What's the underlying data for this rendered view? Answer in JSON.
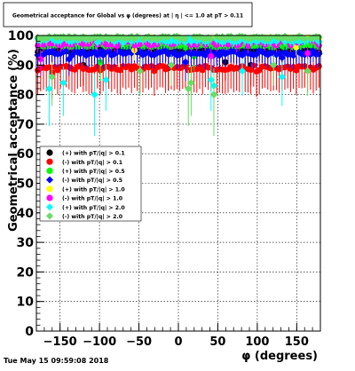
{
  "chart_data": {
    "type": "scatter",
    "title": "Geometrical acceptance for Global vs φ (degrees) at | η | <= 1.0 at pT > 0.11",
    "xlabel": "φ (degrees)",
    "ylabel": "Geometrical acceptance (%)",
    "xlim": [
      -180,
      180
    ],
    "ylim": [
      0,
      100
    ],
    "x_ticks": [
      -150,
      -100,
      -50,
      0,
      50,
      100,
      150
    ],
    "x_tick_labels": [
      "−150",
      "−100",
      "−50",
      "0",
      "50",
      "100",
      "150"
    ],
    "y_ticks": [
      0,
      10,
      20,
      30,
      40,
      50,
      60,
      70,
      80,
      90,
      100
    ],
    "y_tick_labels": [
      "0",
      "10",
      "20",
      "30",
      "40",
      "50",
      "60",
      "70",
      "80",
      "90",
      "100"
    ],
    "grid": true,
    "legend_position": "middle-left",
    "n_bins": 100,
    "series": [
      {
        "name": "(+) with pT/|q| > 0.1",
        "color": "#000000",
        "marker": "circle",
        "base": 95.0,
        "noise": 0.7,
        "dips": [
          [
            -120,
            90
          ],
          [
            -12,
            89
          ],
          [
            60,
            91
          ],
          [
            92,
            90
          ]
        ]
      },
      {
        "name": "(-) with pT/|q| > 0.1",
        "color": "#ff0000",
        "marker": "circle",
        "base": 89.0,
        "noise": 0.8,
        "dips": [
          [
            -160,
            87.5
          ],
          [
            -30,
            88
          ],
          [
            100,
            87.8
          ]
        ]
      },
      {
        "name": "(+) with pT/|q| > 0.5",
        "color": "#00ff00",
        "marker": "circle",
        "base": 96.5,
        "noise": 0.6,
        "dips": [
          [
            -100,
            91
          ],
          [
            20,
            93
          ]
        ]
      },
      {
        "name": "(-) with pT/|q| > 0.5",
        "color": "#0000ff",
        "marker": "diamond",
        "base": 94.0,
        "noise": 0.8,
        "dips": [
          [
            -140,
            92
          ],
          [
            10,
            91
          ],
          [
            130,
            92.5
          ]
        ]
      },
      {
        "name": "(+) with pT/|q| > 1.0",
        "color": "#ffff00",
        "marker": "circle",
        "base": 99.0,
        "noise": 0.4,
        "dips": [
          [
            -55,
            95
          ],
          [
            150,
            96
          ]
        ]
      },
      {
        "name": "(-) with pT/|q| > 1.0",
        "color": "#ff00ff",
        "marker": "circle",
        "base": 97.5,
        "noise": 1.0,
        "dips": [
          [
            -175,
            92
          ],
          [
            40,
            93
          ],
          [
            165,
            94
          ]
        ]
      },
      {
        "name": "(+) with pT/|q| > 2.0",
        "color": "#00ffff",
        "marker": "diamond",
        "base": 98.5,
        "noise": 0.8,
        "dips": [
          [
            -165,
            82
          ],
          [
            -147,
            84
          ],
          [
            -106,
            80
          ],
          [
            -93,
            85
          ],
          [
            42,
            85
          ],
          [
            44,
            83
          ],
          [
            80,
            88
          ],
          [
            130,
            86
          ]
        ]
      },
      {
        "name": "(-) with pT/|q| > 2.0",
        "color": "#66dd66",
        "marker": "diamond",
        "base": 99.3,
        "noise": 0.5,
        "dips": [
          [
            -160,
            86
          ],
          [
            -50,
            88
          ],
          [
            -8,
            90
          ],
          [
            14,
            82
          ],
          [
            16,
            84
          ],
          [
            44,
            80
          ],
          [
            120,
            90
          ],
          [
            165,
            88
          ]
        ]
      }
    ]
  },
  "footer": {
    "timestamp": "Tue May 15 09:59:08 2018"
  },
  "colors": {
    "background": "#ffffff",
    "frame": "#000000",
    "grid": "#000000"
  }
}
